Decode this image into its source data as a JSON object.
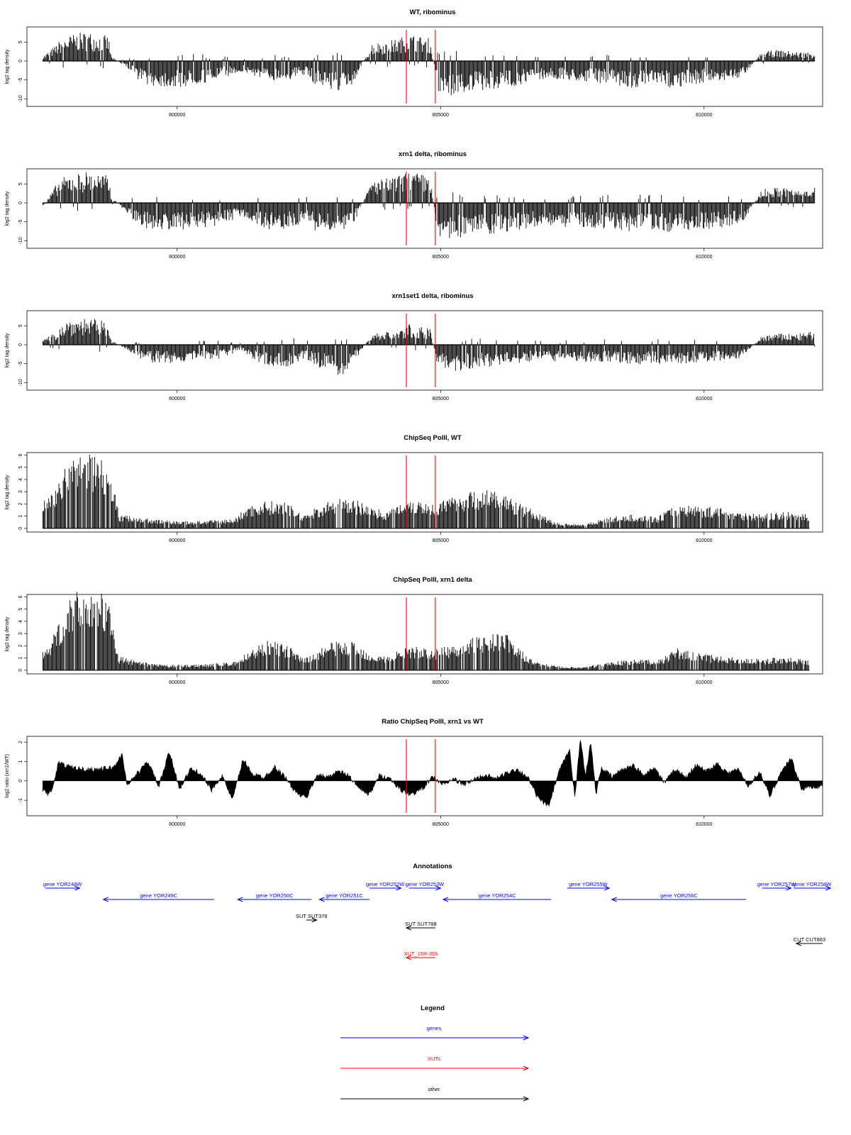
{
  "chart_data": [
    {
      "type": "bar",
      "title": "WT, ribominus",
      "ylabel": "log2 tag density",
      "ylim": [
        -12,
        9
      ],
      "yticks": [
        -10,
        -5,
        0,
        5
      ],
      "ytick_labels": [
        "-10",
        "-5",
        "0",
        "5"
      ],
      "xticks": [
        800000,
        805000,
        810000
      ],
      "xtick_labels": [
        "800000",
        "805000",
        "810000"
      ],
      "xlim": [
        797150,
        812250
      ],
      "vlines": [
        804350,
        804900
      ],
      "vline_color": "#ff0000",
      "bar_color": "#000000",
      "grid": false,
      "kind": "signal-strand",
      "series": [
        {
          "x": [
            797450,
            797700,
            797800,
            798050,
            798300,
            798700,
            798750,
            799100,
            799250,
            799500,
            800000,
            800500,
            800800,
            801200,
            801400,
            801700,
            802200,
            802400,
            802600,
            802900,
            803100,
            803300,
            803700,
            804000,
            804200,
            804400,
            804600,
            804800,
            804950,
            805200,
            805500,
            805900,
            806200,
            806600,
            806900,
            808200,
            808600,
            809000,
            809400,
            809900,
            810300,
            810700,
            811100,
            811400,
            811800,
            812100
          ],
          "values": [
            1,
            3.5,
            5,
            6,
            6.5,
            5.5,
            1,
            -2,
            -4,
            -5.5,
            -6,
            -5,
            -4,
            -2.5,
            -3,
            -4.5,
            -4,
            -3,
            -5,
            -6,
            -7,
            -6,
            4,
            4.5,
            5,
            6,
            5.5,
            5,
            -7,
            -8,
            -7,
            -6.5,
            -6,
            -5,
            -4,
            -5,
            -6,
            -5.5,
            -6,
            -5,
            -4.5,
            -4,
            2,
            2.5,
            2,
            2
          ]
        }
      ]
    },
    {
      "type": "bar",
      "title": "xrn1 delta, ribominus",
      "ylabel": "log2 tag density",
      "ylim": [
        -12,
        9
      ],
      "yticks": [
        -10,
        -5,
        0,
        5
      ],
      "ytick_labels": [
        "-10",
        "-5",
        "0",
        "5"
      ],
      "xticks": [
        800000,
        805000,
        810000
      ],
      "xtick_labels": [
        "800000",
        "805000",
        "810000"
      ],
      "xlim": [
        797150,
        812250
      ],
      "vlines": [
        804350,
        804900
      ],
      "vline_color": "#ff0000",
      "bar_color": "#000000",
      "grid": false,
      "kind": "signal-strand",
      "series": [
        {
          "x": [
            797450,
            797700,
            797800,
            798050,
            798300,
            798700,
            798750,
            799100,
            799250,
            799500,
            800000,
            800500,
            800800,
            801200,
            801400,
            801700,
            802200,
            802400,
            802600,
            802900,
            803100,
            803300,
            803700,
            804000,
            804200,
            804400,
            804600,
            804800,
            804950,
            805200,
            805500,
            805900,
            806200,
            806600,
            806900,
            808200,
            808600,
            809000,
            809400,
            809900,
            810300,
            810700,
            811100,
            811400,
            811800,
            812100
          ],
          "values": [
            -1,
            4,
            5.5,
            6.5,
            7,
            6,
            1.5,
            -3,
            -5,
            -6,
            -6,
            -5.5,
            -5,
            -3,
            -4,
            -6,
            -5.5,
            -4,
            -6,
            -7,
            -7.5,
            -6,
            5,
            5.5,
            6,
            7,
            6.5,
            6,
            -7.5,
            -8,
            -7.5,
            -7,
            -6.5,
            -6,
            -5,
            -6,
            -6.5,
            -6,
            -6.5,
            -6,
            -5.5,
            -5,
            3,
            3.5,
            3,
            4
          ]
        }
      ]
    },
    {
      "type": "bar",
      "title": "xrn1set1 delta, ribominus",
      "ylabel": "log2 tag density",
      "ylim": [
        -12,
        9
      ],
      "yticks": [
        -10,
        -5,
        0,
        5
      ],
      "ytick_labels": [
        "-10",
        "-5",
        "0",
        "5"
      ],
      "xticks": [
        800000,
        805000,
        810000
      ],
      "xtick_labels": [
        "800000",
        "805000",
        "810000"
      ],
      "xlim": [
        797150,
        812250
      ],
      "vlines": [
        804350,
        804900
      ],
      "vline_color": "#ff0000",
      "bar_color": "#000000",
      "grid": false,
      "kind": "signal-strand",
      "series": [
        {
          "x": [
            797450,
            797700,
            797800,
            798050,
            798300,
            798700,
            798750,
            799100,
            799250,
            799500,
            800000,
            800500,
            800800,
            801200,
            801400,
            801700,
            802200,
            802400,
            802600,
            802900,
            803100,
            803300,
            803700,
            804000,
            804200,
            804400,
            804600,
            804800,
            804950,
            805200,
            805500,
            805900,
            806200,
            806600,
            806900,
            808200,
            808600,
            809000,
            809400,
            809900,
            810300,
            810700,
            811100,
            811400,
            811800,
            812100
          ],
          "values": [
            1,
            3,
            5,
            6,
            6,
            5,
            1,
            -1.5,
            -3,
            -4,
            -4,
            -3.5,
            -3,
            -1.5,
            -3,
            -5,
            -5,
            -3,
            -4.5,
            -6,
            -7,
            -5,
            2.5,
            3,
            3,
            4.5,
            4,
            3.5,
            -5,
            -6,
            -5.5,
            -5,
            -4.5,
            -4,
            -3.5,
            -4,
            -4.5,
            -4,
            -4.5,
            -4,
            -3.5,
            -3,
            2,
            2.5,
            2.5,
            3
          ]
        }
      ]
    },
    {
      "type": "bar",
      "title": "ChipSeq PolII, WT",
      "ylabel": "log2 tag density",
      "ylim": [
        -0.3,
        6.2
      ],
      "yticks": [
        0,
        1,
        2,
        3,
        4,
        5,
        6
      ],
      "ytick_labels": [
        "0",
        "1",
        "2",
        "3",
        "4",
        "5",
        "6"
      ],
      "xticks": [
        800000,
        805000,
        810000
      ],
      "xtick_labels": [
        "800000",
        "805000",
        "810000"
      ],
      "xlim": [
        797150,
        812250
      ],
      "vlines": [
        804350,
        804900
      ],
      "vline_color": "#ff0000",
      "bar_color": "#000000",
      "grid": false,
      "kind": "signal-positive",
      "series": [
        {
          "x": [
            797450,
            797600,
            797900,
            798100,
            798300,
            798500,
            798700,
            798900,
            799300,
            799700,
            800200,
            800700,
            801100,
            801300,
            801700,
            802100,
            802400,
            802900,
            803300,
            803700,
            804000,
            804350,
            804650,
            804900,
            805200,
            805500,
            805900,
            806200,
            806500,
            806800,
            807200,
            807700,
            808200,
            808700,
            809100,
            809500,
            809900,
            810300,
            810700,
            811100,
            811500,
            812000
          ],
          "values": [
            2,
            2.5,
            4.5,
            5.2,
            5.5,
            5.3,
            4.8,
            1,
            0.8,
            0.6,
            0.5,
            0.6,
            0.7,
            1.5,
            2,
            1.8,
            1,
            2,
            2.2,
            1.5,
            1.2,
            2.2,
            2,
            1.8,
            2.2,
            2.6,
            2.8,
            2.5,
            1.8,
            1.2,
            0.4,
            0.3,
            0.8,
            1,
            0.8,
            1.8,
            1.6,
            1.5,
            1.2,
            1,
            1.2,
            1
          ]
        }
      ]
    },
    {
      "type": "bar",
      "title": "ChipSeq PolII, xrn1 delta",
      "ylabel": "log2 tag density",
      "ylim": [
        -0.3,
        6.2
      ],
      "yticks": [
        0,
        1,
        2,
        3,
        4,
        5,
        6
      ],
      "ytick_labels": [
        "0",
        "1",
        "2",
        "3",
        "4",
        "5",
        "6"
      ],
      "xticks": [
        800000,
        805000,
        810000
      ],
      "xtick_labels": [
        "800000",
        "805000",
        "810000"
      ],
      "xlim": [
        797150,
        812250
      ],
      "vlines": [
        804350,
        804900
      ],
      "vline_color": "#ff0000",
      "bar_color": "#000000",
      "grid": false,
      "kind": "signal-positive",
      "series": [
        {
          "x": [
            797450,
            797600,
            797900,
            798100,
            798300,
            798500,
            798700,
            798900,
            799300,
            799700,
            800200,
            800700,
            801100,
            801300,
            801700,
            802100,
            802400,
            802900,
            803300,
            803700,
            804000,
            804350,
            804650,
            804900,
            805200,
            805500,
            805900,
            806200,
            806500,
            806800,
            807200,
            807700,
            808200,
            808700,
            809100,
            809500,
            809900,
            810300,
            810700,
            811100,
            811500,
            812000
          ],
          "values": [
            1.5,
            2,
            4.8,
            5.6,
            5.9,
            5.7,
            5,
            1,
            0.6,
            0.4,
            0.4,
            0.5,
            0.6,
            1.2,
            2.2,
            1.8,
            0.8,
            2,
            2.1,
            1.2,
            1,
            1.8,
            1.6,
            1.5,
            1.8,
            2.2,
            2.6,
            2.8,
            1.5,
            0.6,
            0.3,
            0.2,
            0.6,
            0.8,
            0.7,
            1.6,
            1.2,
            1,
            0.9,
            0.8,
            1,
            0.7
          ]
        }
      ]
    },
    {
      "type": "area",
      "title": "Ratio ChipSeq PolII, xrn1 vs WT",
      "ylabel": "log2 ratio (xrn1/WT)",
      "ylim": [
        -1.8,
        2.3
      ],
      "yticks": [
        -1,
        0,
        1,
        2
      ],
      "ytick_labels": [
        "-1",
        "0",
        "1",
        "2"
      ],
      "xticks": [
        800000,
        805000,
        810000
      ],
      "xtick_labels": [
        "800000",
        "805000",
        "810000"
      ],
      "xlim": [
        797150,
        812250
      ],
      "vlines": [
        804350,
        804900
      ],
      "vline_color": "#ff0000",
      "grid": false,
      "series": [
        {
          "x": [
            797450,
            797550,
            797650,
            797750,
            797850,
            798000,
            798200,
            798500,
            798800,
            798950,
            799050,
            799250,
            799450,
            799650,
            799850,
            800050,
            800250,
            800450,
            800650,
            800850,
            801050,
            801250,
            801450,
            801650,
            801850,
            802050,
            802250,
            802450,
            802650,
            802850,
            803050,
            803250,
            803450,
            803650,
            803850,
            804050,
            804250,
            804450,
            804650,
            804850,
            805050,
            805250,
            805450,
            805650,
            805850,
            806050,
            806250,
            806450,
            806650,
            806850,
            807050,
            807250,
            807450,
            807550,
            807650,
            807750,
            807850,
            807950,
            808050,
            808250,
            808450,
            808650,
            808850,
            809050,
            809250,
            809450,
            809650,
            809850,
            810050,
            810250,
            810450,
            810650,
            810850,
            811050,
            811250,
            811450,
            811650,
            811850,
            812050,
            812250
          ],
          "values": [
            -0.5,
            -0.7,
            -0.3,
            1.0,
            0.8,
            0.7,
            0.6,
            0.6,
            0.7,
            1.4,
            -0.2,
            0.4,
            1.0,
            -0.3,
            1.5,
            -0.4,
            0.6,
            0.4,
            -0.5,
            0.3,
            -1.0,
            1.1,
            0.3,
            0.2,
            0.7,
            0.2,
            -0.6,
            -0.9,
            0.3,
            0.2,
            0.5,
            0.3,
            -0.4,
            -0.7,
            0.3,
            0.1,
            -0.5,
            -0.7,
            -0.4,
            0.2,
            -0.2,
            0.1,
            -0.2,
            0.1,
            0.3,
            0.1,
            0.4,
            0.6,
            0.2,
            -0.9,
            -1.3,
            0.5,
            1.6,
            -0.9,
            2.2,
            0.3,
            2.0,
            -0.7,
            0.7,
            0.2,
            0.6,
            0.8,
            0.3,
            0.7,
            -0.1,
            0.6,
            0.2,
            0.8,
            0.5,
            0.9,
            0.4,
            0.6,
            -0.3,
            0.5,
            -0.8,
            0.4,
            1.2,
            -0.4,
            -0.3,
            -0.3
          ]
        }
      ]
    }
  ],
  "annotations": {
    "title": "Annotations",
    "xlim": [
      797150,
      812250
    ],
    "features": [
      {
        "label": "gene YOR248W",
        "start": 797500,
        "end": 798150,
        "strand": "+",
        "kind": "gene",
        "row": 0
      },
      {
        "label": "gene YOR249C",
        "start": 798600,
        "end": 800700,
        "strand": "-",
        "kind": "gene",
        "row": 1
      },
      {
        "label": "gene YOR250C",
        "start": 801150,
        "end": 802550,
        "strand": "-",
        "kind": "gene",
        "row": 1
      },
      {
        "label": "gene YOR251C",
        "start": 802700,
        "end": 803650,
        "strand": "-",
        "kind": "gene",
        "row": 1
      },
      {
        "label": "gene YOR252W",
        "start": 803650,
        "end": 804250,
        "strand": "+",
        "kind": "gene",
        "row": 0
      },
      {
        "label": "gene YOR253W",
        "start": 804400,
        "end": 805000,
        "strand": "+",
        "kind": "gene",
        "row": 0
      },
      {
        "label": "gene YOR254C",
        "start": 805050,
        "end": 807100,
        "strand": "-",
        "kind": "gene",
        "row": 1
      },
      {
        "label": "gene YOR255W",
        "start": 807400,
        "end": 808200,
        "strand": "+",
        "kind": "gene",
        "row": 0
      },
      {
        "label": "gene YOR256C",
        "start": 808250,
        "end": 810800,
        "strand": "-",
        "kind": "gene",
        "row": 1
      },
      {
        "label": "gene YOR257W",
        "start": 811100,
        "end": 811650,
        "strand": "+",
        "kind": "gene",
        "row": 0
      },
      {
        "label": "gene YOR258W",
        "start": 811700,
        "end": 812400,
        "strand": "+",
        "kind": "gene",
        "row": 0
      },
      {
        "label": "SUT SUT378",
        "start": 802450,
        "end": 802650,
        "strand": "+",
        "kind": "other",
        "row": 2
      },
      {
        "label": "SUT SUT788",
        "start": 804350,
        "end": 804900,
        "strand": "-",
        "kind": "other",
        "row": 3
      },
      {
        "label": "CUT CUT863",
        "start": 811750,
        "end": 812250,
        "strand": "-",
        "kind": "other",
        "row": 4
      },
      {
        "label": "XUT_15R-355",
        "start": 804350,
        "end": 804900,
        "strand": "-",
        "kind": "xut",
        "row": 5
      }
    ]
  },
  "legend": {
    "title": "Legend",
    "items": [
      {
        "label": "genes",
        "color": "#0000ff"
      },
      {
        "label": "XUTs",
        "color": "#ff0000"
      },
      {
        "label": "other",
        "color": "#000000"
      }
    ]
  },
  "colors": {
    "gene": "#0000ff",
    "xut": "#ff0000",
    "other": "#000000",
    "vline": "#ff0000",
    "signal": "#000000"
  }
}
